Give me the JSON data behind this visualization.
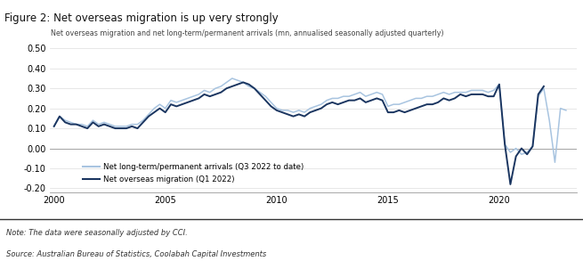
{
  "title": "Figure 2: Net overseas migration is up very strongly",
  "subtitle": "Net overseas migration and net long-term/permanent arrivals (mn, annualised seasonally adjusted quarterly)",
  "note": "Note: The data were seasonally adjusted by CCI.",
  "source": "Source: Australian Bureau of Statistics, Coolabah Capital Investments",
  "title_bg": "#cdd9e5",
  "ylim": [
    -0.22,
    0.54
  ],
  "xlim_start": 1999.8,
  "xlim_end": 2023.5,
  "xticks": [
    2000,
    2005,
    2010,
    2015,
    2020
  ],
  "light_color": "#a8c4e0",
  "dark_color": "#1a3560",
  "legend_light": "Net long-term/permanent arrivals (Q3 2022 to date)",
  "legend_dark": "Net overseas migration (Q1 2022)",
  "nom_x": [
    2000.0,
    2000.25,
    2000.5,
    2000.75,
    2001.0,
    2001.25,
    2001.5,
    2001.75,
    2002.0,
    2002.25,
    2002.5,
    2002.75,
    2003.0,
    2003.25,
    2003.5,
    2003.75,
    2004.0,
    2004.25,
    2004.5,
    2004.75,
    2005.0,
    2005.25,
    2005.5,
    2005.75,
    2006.0,
    2006.25,
    2006.5,
    2006.75,
    2007.0,
    2007.25,
    2007.5,
    2007.75,
    2008.0,
    2008.25,
    2008.5,
    2008.75,
    2009.0,
    2009.25,
    2009.5,
    2009.75,
    2010.0,
    2010.25,
    2010.5,
    2010.75,
    2011.0,
    2011.25,
    2011.5,
    2011.75,
    2012.0,
    2012.25,
    2012.5,
    2012.75,
    2013.0,
    2013.25,
    2013.5,
    2013.75,
    2014.0,
    2014.25,
    2014.5,
    2014.75,
    2015.0,
    2015.25,
    2015.5,
    2015.75,
    2016.0,
    2016.25,
    2016.5,
    2016.75,
    2017.0,
    2017.25,
    2017.5,
    2017.75,
    2018.0,
    2018.25,
    2018.5,
    2018.75,
    2019.0,
    2019.25,
    2019.5,
    2019.75,
    2020.0,
    2020.25,
    2020.5,
    2020.75,
    2021.0,
    2021.25,
    2021.5,
    2021.75,
    2022.0
  ],
  "nom_y": [
    0.11,
    0.16,
    0.13,
    0.12,
    0.12,
    0.11,
    0.1,
    0.13,
    0.11,
    0.12,
    0.11,
    0.1,
    0.1,
    0.1,
    0.11,
    0.1,
    0.13,
    0.16,
    0.18,
    0.2,
    0.18,
    0.22,
    0.21,
    0.22,
    0.23,
    0.24,
    0.25,
    0.27,
    0.26,
    0.27,
    0.28,
    0.3,
    0.31,
    0.32,
    0.33,
    0.32,
    0.3,
    0.27,
    0.24,
    0.21,
    0.19,
    0.18,
    0.17,
    0.16,
    0.17,
    0.16,
    0.18,
    0.19,
    0.2,
    0.22,
    0.23,
    0.22,
    0.23,
    0.24,
    0.24,
    0.25,
    0.23,
    0.24,
    0.25,
    0.24,
    0.18,
    0.18,
    0.19,
    0.18,
    0.19,
    0.2,
    0.21,
    0.22,
    0.22,
    0.23,
    0.25,
    0.24,
    0.25,
    0.27,
    0.26,
    0.27,
    0.27,
    0.27,
    0.26,
    0.26,
    0.32,
    0.02,
    -0.18,
    -0.04,
    0.0,
    -0.03,
    0.01,
    0.27,
    0.31
  ],
  "ltpa_x": [
    2000.0,
    2000.25,
    2000.5,
    2000.75,
    2001.0,
    2001.25,
    2001.5,
    2001.75,
    2002.0,
    2002.25,
    2002.5,
    2002.75,
    2003.0,
    2003.25,
    2003.5,
    2003.75,
    2004.0,
    2004.25,
    2004.5,
    2004.75,
    2005.0,
    2005.25,
    2005.5,
    2005.75,
    2006.0,
    2006.25,
    2006.5,
    2006.75,
    2007.0,
    2007.25,
    2007.5,
    2007.75,
    2008.0,
    2008.25,
    2008.5,
    2008.75,
    2009.0,
    2009.25,
    2009.5,
    2009.75,
    2010.0,
    2010.25,
    2010.5,
    2010.75,
    2011.0,
    2011.25,
    2011.5,
    2011.75,
    2012.0,
    2012.25,
    2012.5,
    2012.75,
    2013.0,
    2013.25,
    2013.5,
    2013.75,
    2014.0,
    2014.25,
    2014.5,
    2014.75,
    2015.0,
    2015.25,
    2015.5,
    2015.75,
    2016.0,
    2016.25,
    2016.5,
    2016.75,
    2017.0,
    2017.25,
    2017.5,
    2017.75,
    2018.0,
    2018.25,
    2018.5,
    2018.75,
    2019.0,
    2019.25,
    2019.5,
    2019.75,
    2020.0,
    2020.25,
    2020.5,
    2020.75,
    2021.0,
    2021.25,
    2021.5,
    2021.75,
    2022.0,
    2022.25,
    2022.5,
    2022.75,
    2023.0
  ],
  "ltpa_y": [
    0.11,
    0.16,
    0.14,
    0.13,
    0.12,
    0.12,
    0.11,
    0.14,
    0.12,
    0.13,
    0.12,
    0.11,
    0.11,
    0.11,
    0.12,
    0.12,
    0.14,
    0.17,
    0.2,
    0.22,
    0.2,
    0.24,
    0.23,
    0.24,
    0.25,
    0.26,
    0.27,
    0.29,
    0.28,
    0.3,
    0.31,
    0.33,
    0.35,
    0.34,
    0.33,
    0.31,
    0.3,
    0.28,
    0.26,
    0.23,
    0.2,
    0.19,
    0.19,
    0.18,
    0.19,
    0.18,
    0.2,
    0.21,
    0.22,
    0.24,
    0.25,
    0.25,
    0.26,
    0.26,
    0.27,
    0.28,
    0.26,
    0.27,
    0.28,
    0.27,
    0.21,
    0.22,
    0.22,
    0.23,
    0.24,
    0.25,
    0.25,
    0.26,
    0.26,
    0.27,
    0.28,
    0.27,
    0.28,
    0.28,
    0.28,
    0.29,
    0.29,
    0.29,
    0.28,
    0.29,
    0.32,
    0.02,
    -0.02,
    0.0,
    -0.03,
    -0.02,
    0.01,
    0.26,
    0.3,
    0.14,
    -0.07,
    0.2,
    0.19
  ]
}
